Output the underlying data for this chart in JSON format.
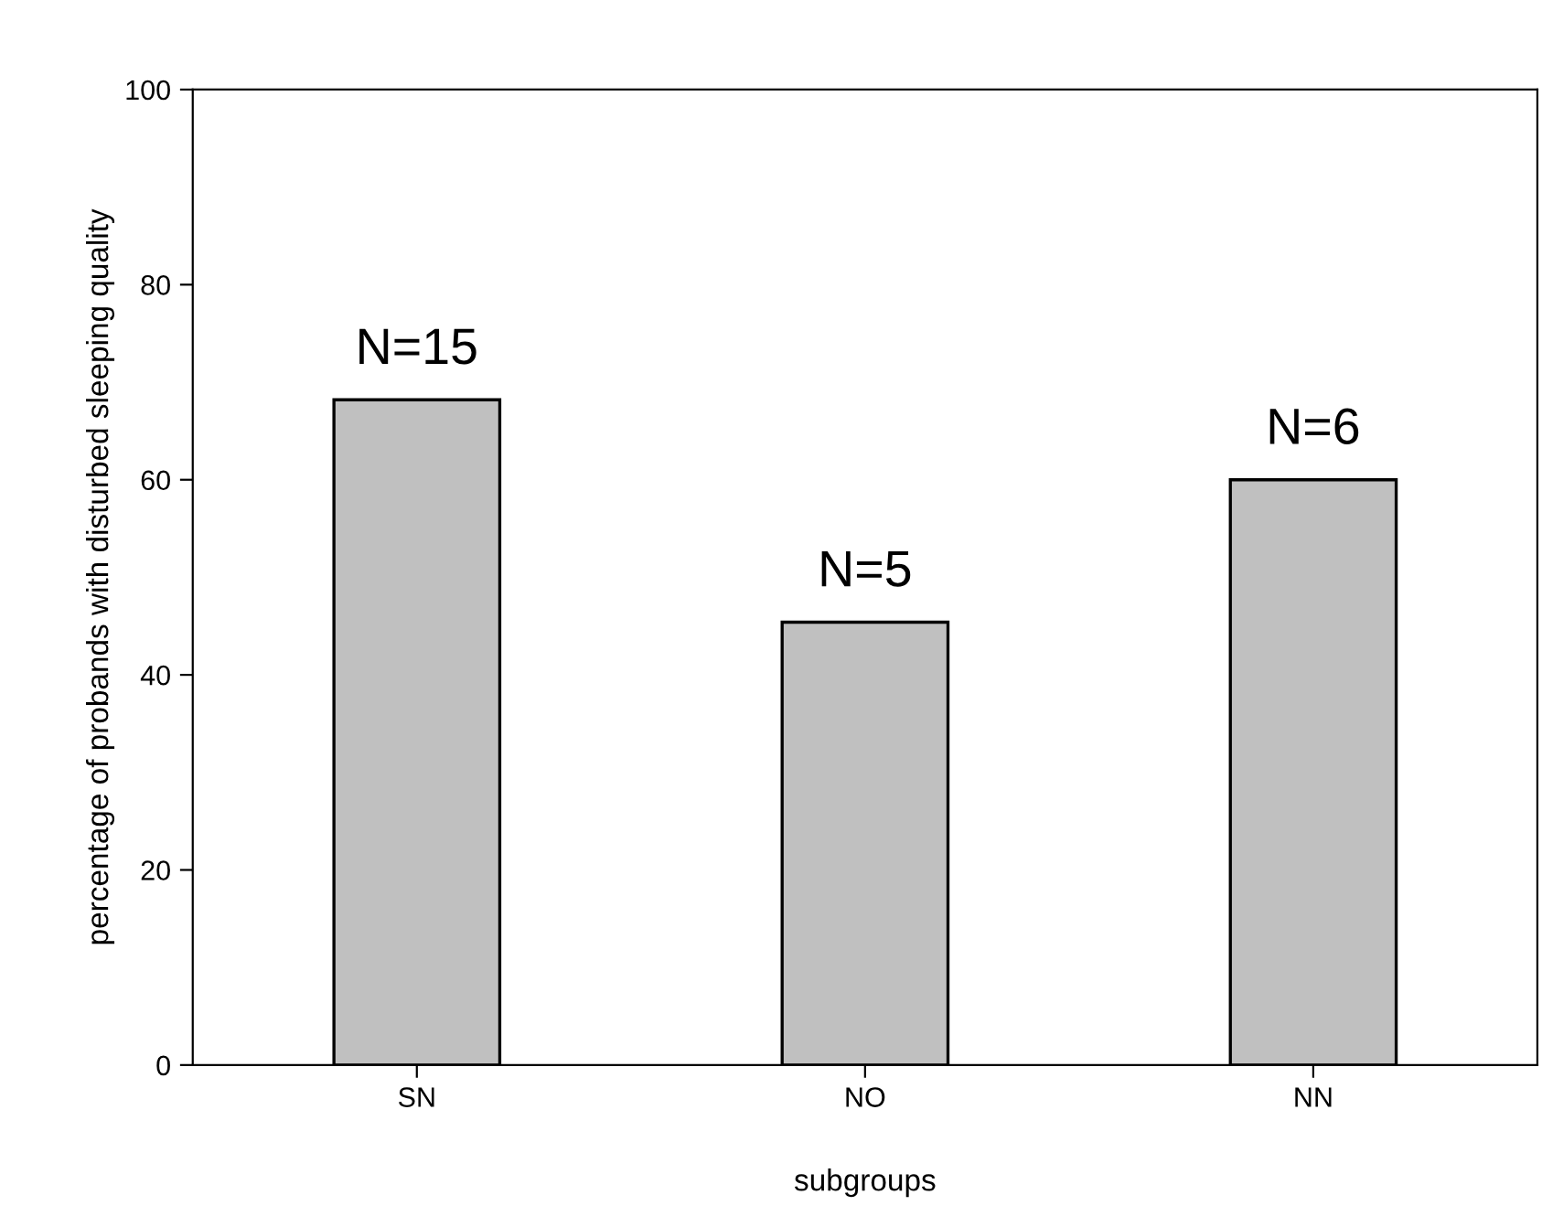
{
  "chart_data": {
    "type": "bar",
    "xlabel": "subgroups",
    "ylabel": "percentage of probands with disturbed sleeping quality",
    "categories": [
      "SN",
      "NO",
      "NN"
    ],
    "values": [
      68.2,
      45.4,
      60
    ],
    "color": "#c0c0c0",
    "ylim": [
      0,
      100
    ],
    "yticks": [
      0,
      20,
      40,
      60,
      80,
      100
    ],
    "grid": false,
    "legend": false,
    "annotations": [
      {
        "text": "N=15",
        "x": "SN",
        "y": 68.2
      },
      {
        "text": "N=5",
        "x": "NO",
        "y": 45.4
      },
      {
        "text": "N=6",
        "x": "NN",
        "y": 60
      }
    ]
  }
}
